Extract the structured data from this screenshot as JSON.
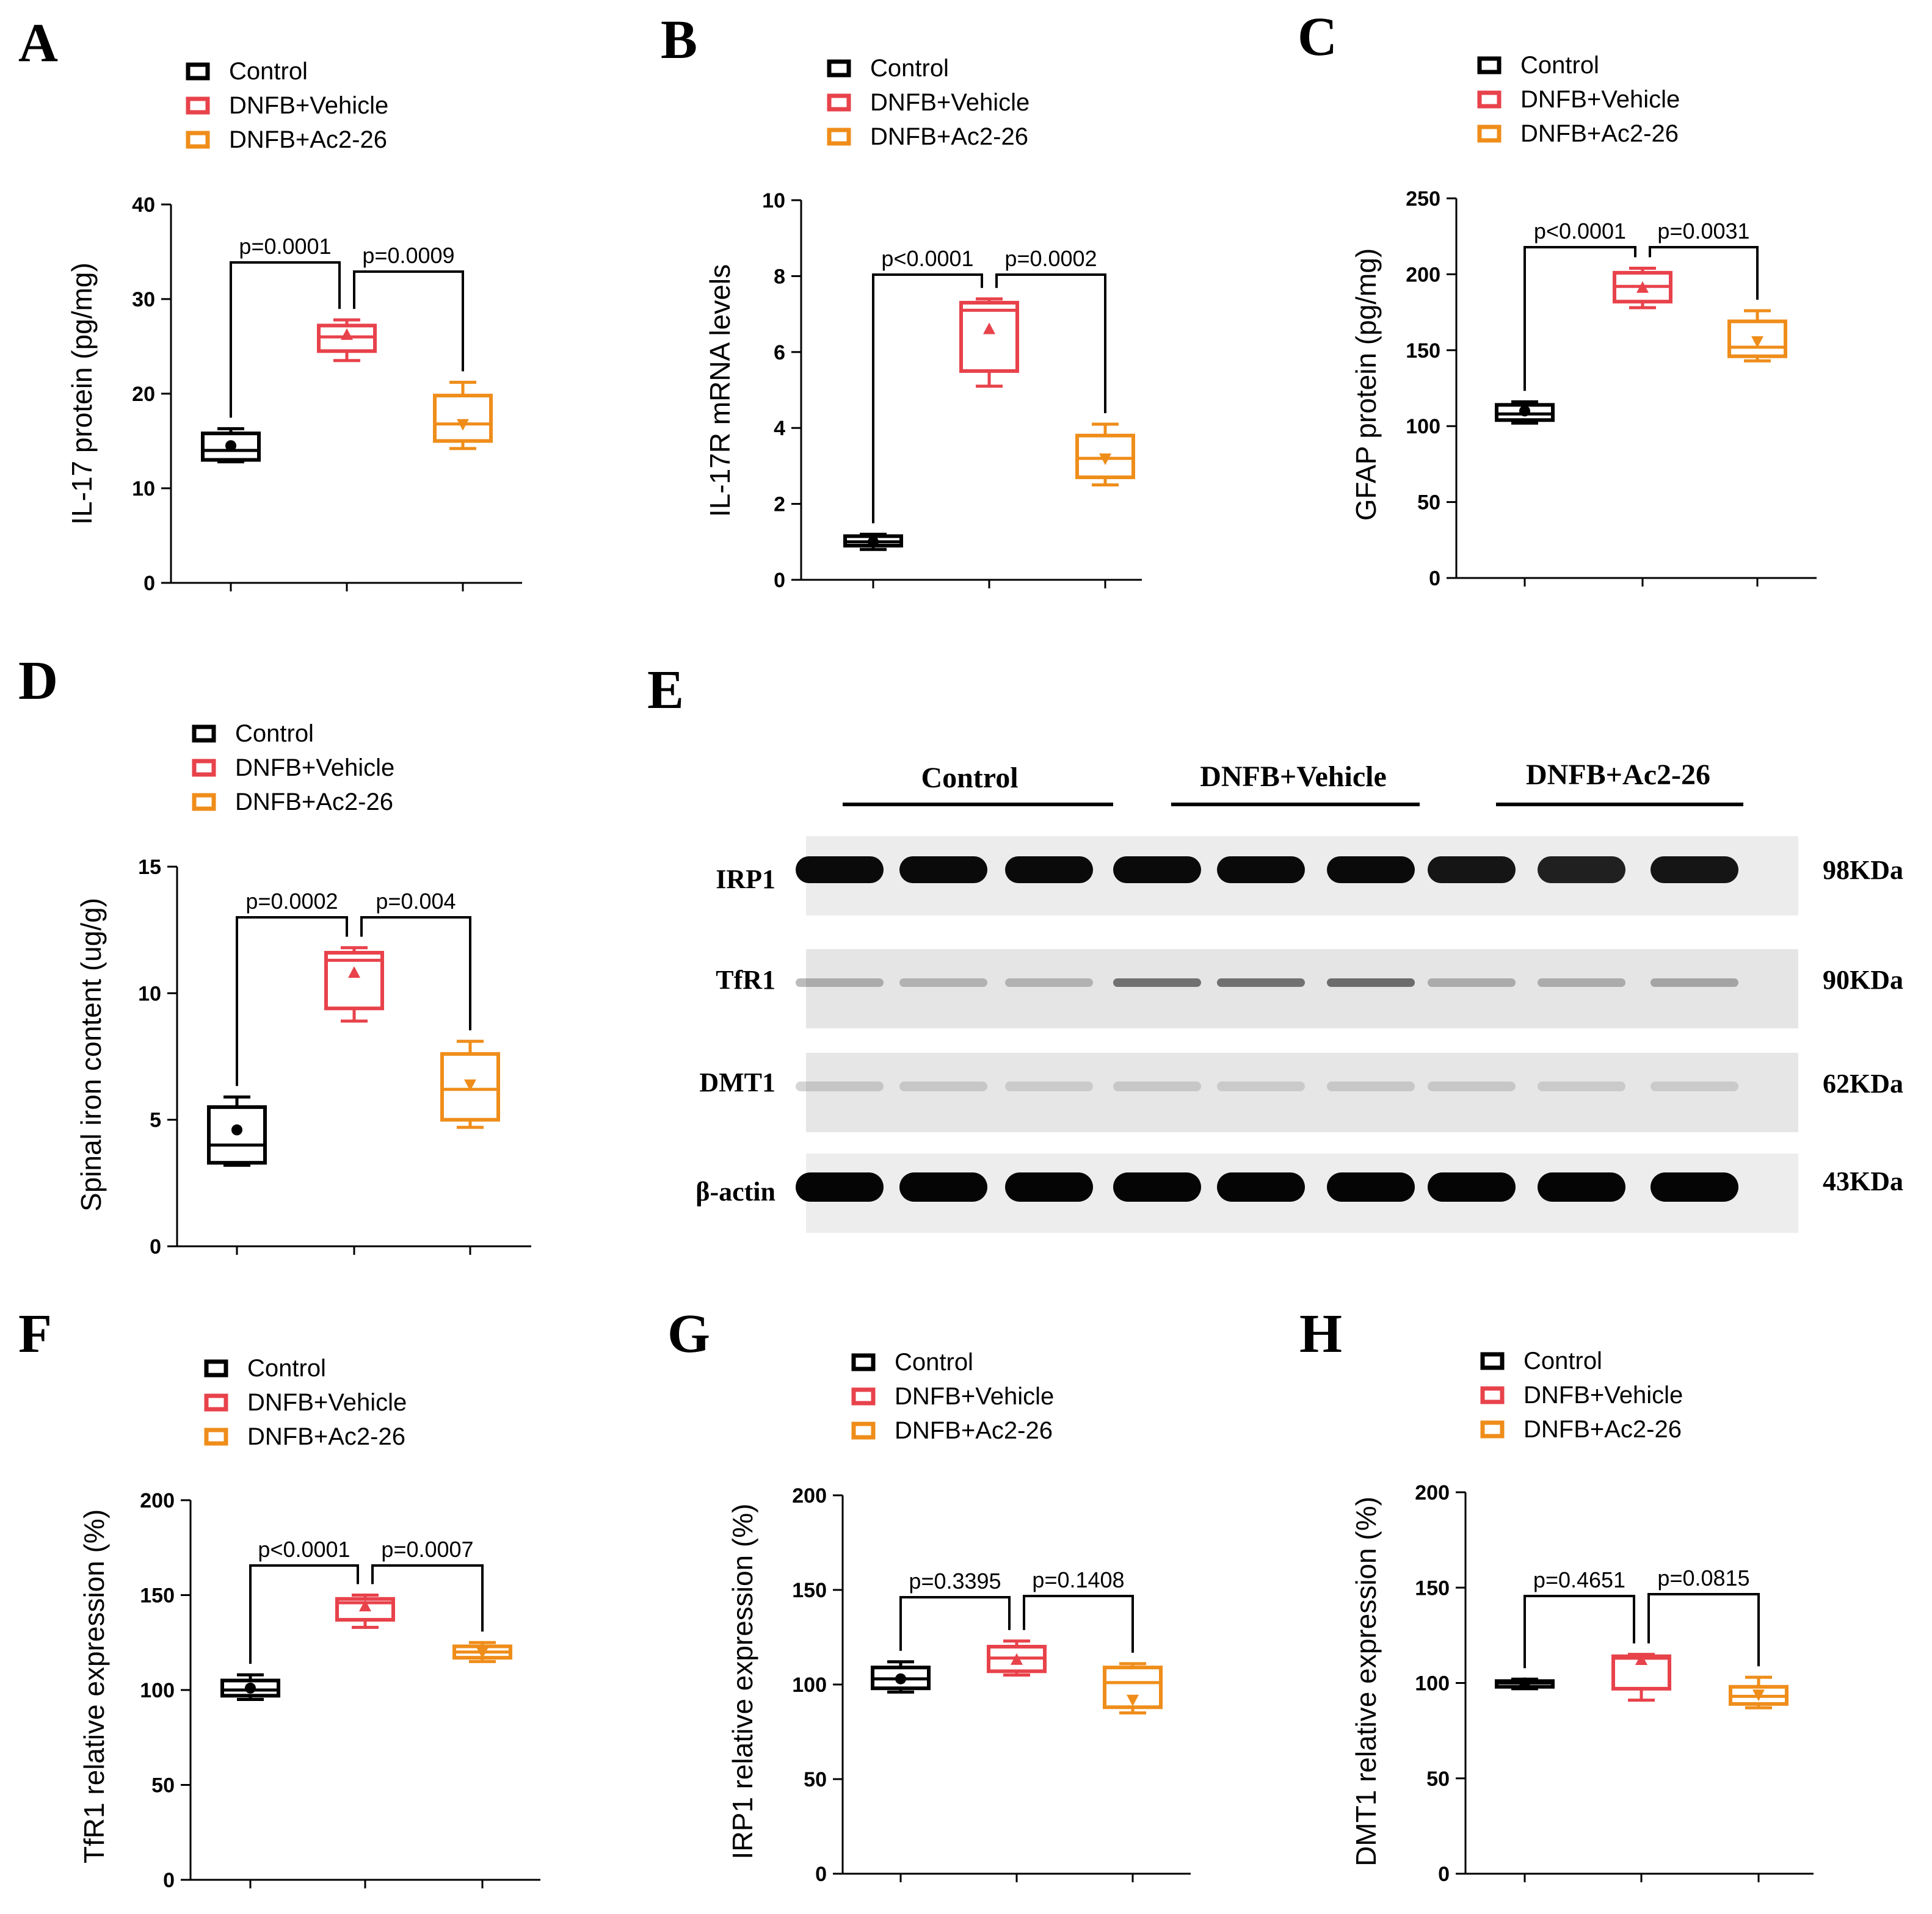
{
  "colors": {
    "control": "#000000",
    "vehicle": "#e8424b",
    "ac2": "#ef8d1a"
  },
  "legend": [
    "Control",
    "DNFB+Vehicle",
    "DNFB+Ac2-26"
  ],
  "chart_data": [
    {
      "panel": "A",
      "type": "box",
      "ylabel": "IL-17 protein (pg/mg)",
      "ylim": [
        0,
        40
      ],
      "yticks": [
        0,
        10,
        20,
        30,
        40
      ],
      "groups": [
        {
          "name": "Control",
          "min": 12.8,
          "q1": 13.0,
          "median": 14.0,
          "q3": 15.8,
          "max": 16.3,
          "mean": 14.5
        },
        {
          "name": "DNFB+Vehicle",
          "min": 23.5,
          "q1": 24.5,
          "median": 26.0,
          "q3": 27.2,
          "max": 27.8,
          "mean": 26.2
        },
        {
          "name": "DNFB+Ac2-26",
          "min": 14.2,
          "q1": 15.0,
          "median": 16.8,
          "q3": 19.8,
          "max": 21.2,
          "mean": 16.8
        }
      ],
      "comparisons": [
        {
          "label": "p=0.0001"
        },
        {
          "label": "p=0.0009"
        }
      ]
    },
    {
      "panel": "B",
      "type": "box",
      "ylabel": "IL-17R mRNA levels",
      "ylim": [
        0,
        10
      ],
      "yticks": [
        0,
        2,
        4,
        6,
        8,
        10
      ],
      "groups": [
        {
          "name": "Control",
          "min": 0.8,
          "q1": 0.9,
          "median": 1.0,
          "q3": 1.15,
          "max": 1.2,
          "mean": 1.0
        },
        {
          "name": "DNFB+Vehicle",
          "min": 5.1,
          "q1": 5.5,
          "median": 7.1,
          "q3": 7.3,
          "max": 7.4,
          "mean": 6.6
        },
        {
          "name": "DNFB+Ac2-26",
          "min": 2.5,
          "q1": 2.7,
          "median": 3.2,
          "q3": 3.8,
          "max": 4.1,
          "mean": 3.2
        }
      ],
      "comparisons": [
        {
          "label": "p<0.0001"
        },
        {
          "label": "p=0.0002"
        }
      ]
    },
    {
      "panel": "C",
      "type": "box",
      "ylabel": "GFAP protein (pg/mg)",
      "ylim": [
        0,
        250
      ],
      "yticks": [
        0,
        50,
        100,
        150,
        200,
        250
      ],
      "groups": [
        {
          "name": "Control",
          "min": 102,
          "q1": 104,
          "median": 108,
          "q3": 114,
          "max": 116,
          "mean": 110
        },
        {
          "name": "DNFB+Vehicle",
          "min": 178,
          "q1": 182,
          "median": 192,
          "q3": 201,
          "max": 204,
          "mean": 191
        },
        {
          "name": "DNFB+Ac2-26",
          "min": 143,
          "q1": 146,
          "median": 152,
          "q3": 169,
          "max": 176,
          "mean": 156
        }
      ],
      "comparisons": [
        {
          "label": "p<0.0001"
        },
        {
          "label": "p=0.0031"
        }
      ]
    },
    {
      "panel": "D",
      "type": "box",
      "ylabel": "Spinal iron content (ug/g)",
      "ylim": [
        0,
        15
      ],
      "yticks": [
        0,
        5,
        10,
        15
      ],
      "groups": [
        {
          "name": "Control",
          "min": 3.2,
          "q1": 3.3,
          "median": 4.0,
          "q3": 5.5,
          "max": 5.9,
          "mean": 4.6
        },
        {
          "name": "DNFB+Vehicle",
          "min": 8.9,
          "q1": 9.4,
          "median": 11.3,
          "q3": 11.6,
          "max": 11.8,
          "mean": 10.8
        },
        {
          "name": "DNFB+Ac2-26",
          "min": 4.7,
          "q1": 5.0,
          "median": 6.2,
          "q3": 7.6,
          "max": 8.1,
          "mean": 6.4
        }
      ],
      "comparisons": [
        {
          "label": "p=0.0002"
        },
        {
          "label": "p=0.004"
        }
      ]
    },
    {
      "panel": "F",
      "type": "box",
      "ylabel": "TfR1 relative expression (%)",
      "ylim": [
        0,
        200
      ],
      "yticks": [
        0,
        50,
        100,
        150,
        200
      ],
      "groups": [
        {
          "name": "Control",
          "min": 95,
          "q1": 97,
          "median": 100,
          "q3": 105,
          "max": 108,
          "mean": 101
        },
        {
          "name": "DNFB+Vehicle",
          "min": 133,
          "q1": 137,
          "median": 146,
          "q3": 148,
          "max": 150,
          "mean": 144
        },
        {
          "name": "DNFB+Ac2-26",
          "min": 115,
          "q1": 117,
          "median": 120,
          "q3": 123,
          "max": 125,
          "mean": 120
        }
      ],
      "comparisons": [
        {
          "label": "p<0.0001"
        },
        {
          "label": "p=0.0007"
        }
      ]
    },
    {
      "panel": "G",
      "type": "box",
      "ylabel": "IRP1 relative expression (%)",
      "ylim": [
        0,
        200
      ],
      "yticks": [
        0,
        50,
        100,
        150,
        200
      ],
      "groups": [
        {
          "name": "Control",
          "min": 96,
          "q1": 98,
          "median": 103,
          "q3": 109,
          "max": 112,
          "mean": 103
        },
        {
          "name": "DNFB+Vehicle",
          "min": 105,
          "q1": 107,
          "median": 114,
          "q3": 120,
          "max": 123,
          "mean": 113
        },
        {
          "name": "DNFB+Ac2-26",
          "min": 85,
          "q1": 88,
          "median": 101,
          "q3": 109,
          "max": 111,
          "mean": 92
        }
      ],
      "comparisons": [
        {
          "label": "p=0.3395"
        },
        {
          "label": "p=0.1408"
        }
      ]
    },
    {
      "panel": "H",
      "type": "box",
      "ylabel": "DMT1 relative expression (%)",
      "ylim": [
        0,
        200
      ],
      "yticks": [
        0,
        50,
        100,
        150,
        200
      ],
      "groups": [
        {
          "name": "Control",
          "min": 97,
          "q1": 98,
          "median": 100,
          "q3": 101,
          "max": 102,
          "mean": 100
        },
        {
          "name": "DNFB+Vehicle",
          "min": 91,
          "q1": 97,
          "median": 113,
          "q3": 114,
          "max": 115,
          "mean": 112
        },
        {
          "name": "DNFB+Ac2-26",
          "min": 87,
          "q1": 89,
          "median": 93,
          "q3": 98,
          "max": 103,
          "mean": 94
        }
      ],
      "comparisons": [
        {
          "label": "p=0.4651"
        },
        {
          "label": "p=0.0815"
        }
      ]
    }
  ],
  "western_blot": {
    "panel": "E",
    "groups": [
      "Control",
      "DNFB+Vehicle",
      "DNFB+Ac2-26"
    ],
    "rows": [
      {
        "label": "IRP1",
        "size": "98KDa"
      },
      {
        "label": "TfR1",
        "size": "90KDa"
      },
      {
        "label": "DMT1",
        "size": "62KDa"
      },
      {
        "label": "β-actin",
        "size": "43KDa"
      }
    ]
  }
}
